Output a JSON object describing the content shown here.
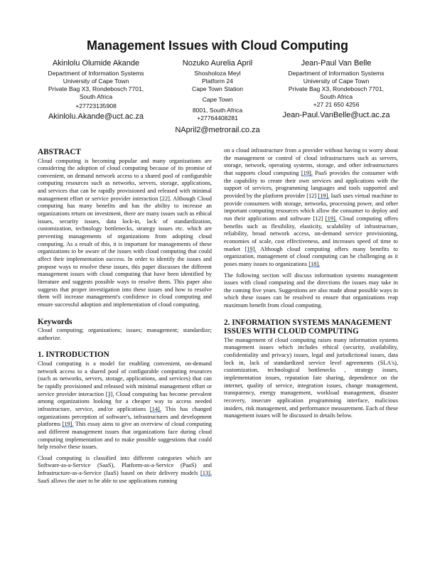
{
  "title": "Management Issues with Cloud Computing",
  "authors": [
    {
      "name": "Akinlolu Olumide Akande",
      "lines": [
        "Department of Information Systems",
        "University of Cape Town",
        "Private Bag X3, Rondebosch 7701,",
        "South Africa",
        "+27723135908"
      ],
      "email": "Akinlolu.Akande@uct.ac.za"
    },
    {
      "name": "Nozuko Aurelia April",
      "lines": [
        "Shosholoza Meyl",
        "Platform 24",
        "Cape Town Station",
        "Cape Town",
        "8001, South Africa",
        "+27764408281"
      ],
      "email": "NApril2@metrorail.co.za"
    },
    {
      "name": "Jean-Paul Van Belle",
      "lines": [
        "Department of Information Systems",
        "University of Cape Town",
        "Private Bag X3, Rondebosch 7701,",
        "South Africa",
        "+27 21 650 4256"
      ],
      "email": "Jean-Paul.VanBelle@uct.ac.za"
    }
  ],
  "link_color": "#4a86d8",
  "left_column": [
    {
      "heading": "ABSTRACT",
      "paragraphs": [
        [
          {
            "t": "Cloud computing is becoming popular and many organizations are considering the adoption of cloud computing because of its promise of convenient, on demand network access to a shared pool of configurable computing resources such as networks, servers, storage, applications, and services that can be rapidly provisioned and released with minimal management effort or service provider interaction [22]. Although Cloud computing has many benefits and has the ability to increase an organizations return on investment, there are many issues such as ethical issues, security issues, data lock-in, lack of standardization, customization, technology bottlenecks, strategy issues etc. which are preventing managements of organizations from adopting cloud computing. As a result of this, it is important for managements of these organizations to be aware of the issues with cloud computing that could affect their implementation success. In order to identify the issues and propose ways to resolve these issues, this paper discusses the different management issues with cloud computing that have been identified by literature and suggests possible ways to resolve them. This paper also suggests that proper investigation into these issues and how to resolve them will increase management's confidence in cloud computing and ensure successful adoption and implementation of cloud computing."
          }
        ]
      ]
    },
    {
      "heading": "Keywords",
      "paragraphs": [
        [
          {
            "t": "Cloud computing; organizations; issues; management; standardize; authorize."
          }
        ]
      ]
    },
    {
      "heading": "1.  INTRODUCTION",
      "paragraphs": [
        [
          {
            "t": "Cloud computing is a model for enabling convenient, on-demand network access to a shared pool of configurable computing resources (such as networks, servers, storage, applications, and services) that can be rapidly provisioned and released with minimal management effort or service provider interaction "
          },
          {
            "t": "[3].",
            "cite": true
          },
          {
            "t": " Cloud computing has become prevalent among organizations looking for a cheaper way to access needed infrastructure, service, and/or applications "
          },
          {
            "t": "[14].",
            "cite": true
          },
          {
            "t": " This has changed organizations perception of software's, infrastructures and development platforms "
          },
          {
            "t": "[19].",
            "cite": true
          },
          {
            "t": " This essay aims to give an overview of cloud computing and different management issues that organizations face during cloud computing implementation and to make possible suggestions that could help resolve these issues."
          }
        ],
        [
          {
            "t": "Cloud computing is classified into different categories which are Software-as-a-Service (SaaS), Platform-as-a-Service (PaaS) and Infrastructure-as-a-Service (IaaS) based on their delivery models "
          },
          {
            "t": "[13].",
            "cite": true
          },
          {
            "t": " SaaS allows the user to be able to use applications running"
          }
        ]
      ]
    }
  ],
  "right_column": [
    {
      "heading": "",
      "paragraphs": [
        [
          {
            "t": "on a cloud infrastructure from a provider without having to worry about the management or control of cloud infrastructures such as servers, storage, network, operating systems, storage, and other infrastructures that supports cloud computing "
          },
          {
            "t": "[19].",
            "cite": true
          },
          {
            "t": " PaaS provides the consumer with the capability to create their own services and applications with the support of services, programming languages and tools supported and provided by the platform provider [12] "
          },
          {
            "t": "[19].",
            "cite": true
          },
          {
            "t": " IaaS uses virtual machine to provide consumers with storage, networks, processing power, and other important computing resources which allow the consumer to deploy and run their applications and software [12] "
          },
          {
            "t": "[19].",
            "cite": true
          },
          {
            "t": " Cloud computing offers benefits such as flexibility, elasticity, scalability of infrastructure, reliability, broad network access, on-demand service provisioning, economies of scale, cost effectiveness, and increases speed of time to market "
          },
          {
            "t": "[19].",
            "cite": true
          },
          {
            "t": " Although cloud computing offers many benefits to organization, management of cloud computing can be challenging as it poses many issues to organizations "
          },
          {
            "t": "[18].",
            "cite": true
          }
        ],
        [
          {
            "t": "The following section will discuss information systems management issues with cloud computing and the directions the issues may take in the coming five years. Suggestions are also made about possible ways in which these issues can be resolved to ensure that organizations reap maximum benefit from cloud computing."
          }
        ]
      ]
    },
    {
      "heading": "2.  INFORMATION SYSTEMS MANAGEMENT ISSUES WITH CLOUD COMPUTING",
      "paragraphs": [
        [
          {
            "t": "The management of cloud computing raises many information systems management issues which includes ethical (security, availability, confidentiality and privacy) issues, legal and jurisdictional issues, data lock in, lack of standardized service level agreements (SLA's), customization, technological bottlenecks , strategy issues, implementation issues, reputation fate sharing, dependence on the internet, quality of service, integration issues, change management, transparency, energy management, workload management, disaster recovery, insecure application programming interface, malicious insiders, risk management, and performance measurement. Each of these management issues will be discussed in details below."
          }
        ]
      ]
    }
  ]
}
